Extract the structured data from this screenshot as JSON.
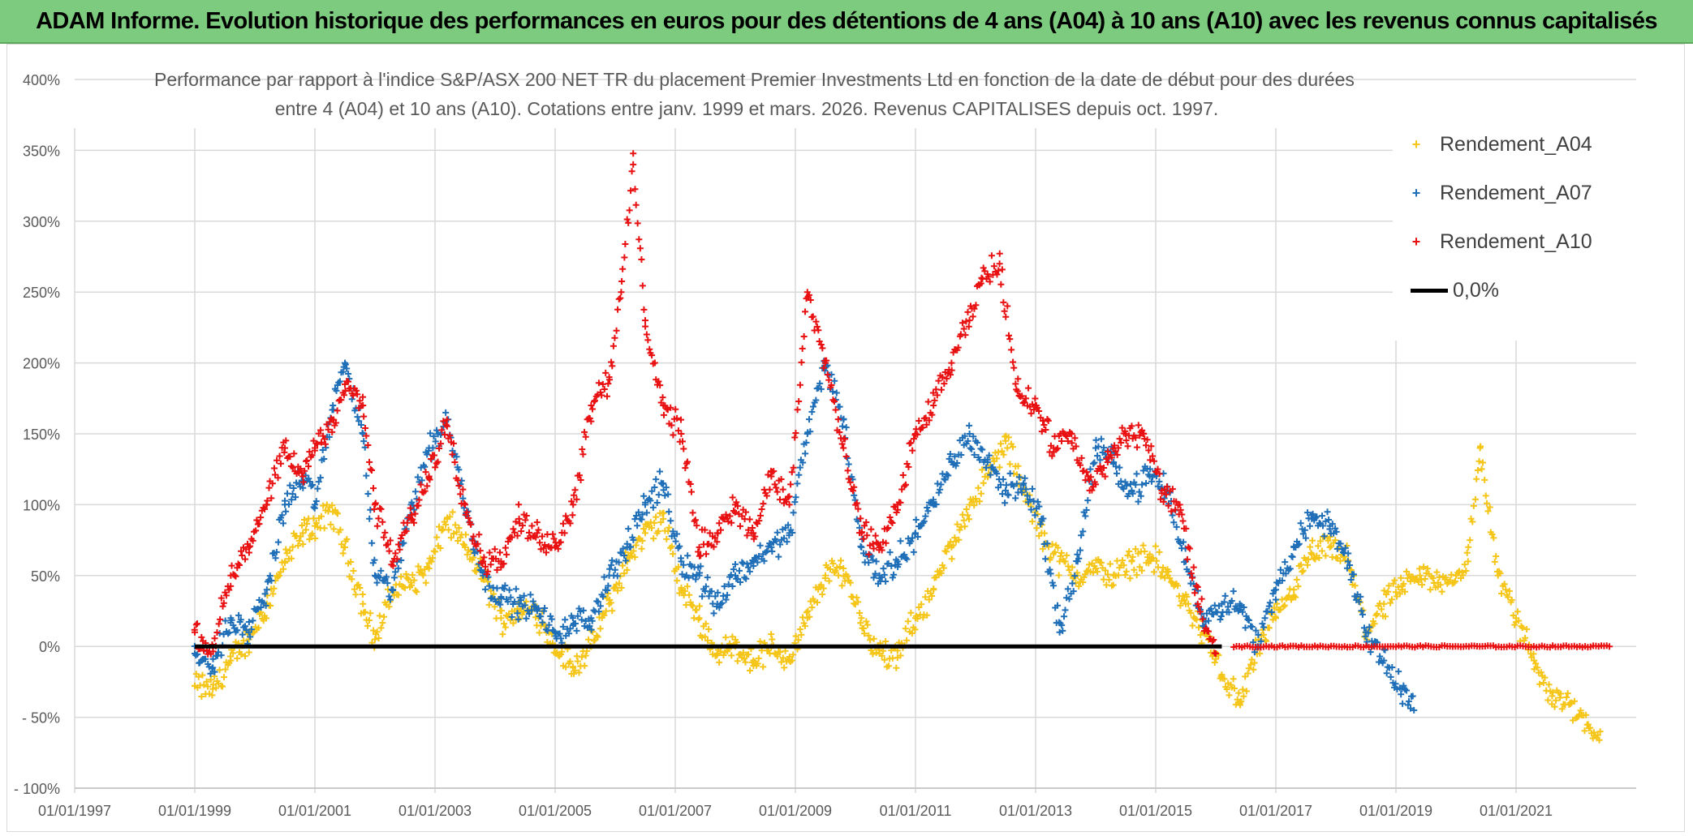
{
  "header": {
    "banner_title": "ADAM Informe. Evolution historique des performances en euros pour des détentions de 4 ans (A04) à 10 ans (A10) avec les revenus connus capitalisés"
  },
  "chart_data": {
    "type": "scatter",
    "title_line1": "Performance par rapport à l'indice S&P/ASX 200 NET TR  du placement Premier Investments Ltd  en fonction de la date de début pour des durées",
    "title_line2": "entre 4 (A04) et 10 ans (A10). Cotations entre janv. 1999 et mars. 2026. Revenus CAPITALISES depuis oct. 1997.",
    "xlabel": "",
    "ylabel": "",
    "xlim": [
      1997.0,
      2023.0
    ],
    "ylim": [
      -100,
      400
    ],
    "x_tick_labels": [
      "01/01/1997",
      "01/01/1999",
      "01/01/2001",
      "01/01/2003",
      "01/01/2005",
      "01/01/2007",
      "01/01/2009",
      "01/01/2011",
      "01/01/2013",
      "01/01/2015",
      "01/01/2017",
      "01/01/2019",
      "01/01/2021"
    ],
    "x_tick_values": [
      1997,
      1999,
      2001,
      2003,
      2005,
      2007,
      2009,
      2011,
      2013,
      2015,
      2017,
      2019,
      2021
    ],
    "y_tick_labels": [
      "- 100%",
      "- 50%",
      "0%",
      "50%",
      "100%",
      "150%",
      "200%",
      "250%",
      "300%",
      "350%",
      "400%"
    ],
    "y_tick_values": [
      -100,
      -50,
      0,
      50,
      100,
      150,
      200,
      250,
      300,
      350,
      400
    ],
    "grid": true,
    "legend_position": "top-right",
    "series": [
      {
        "name": "Rendement_A04",
        "color": "#f5c518",
        "marker": "+",
        "x": [
          1999.0,
          1999.3,
          1999.6,
          1999.9,
          2000.2,
          2000.5,
          2000.8,
          2001.0,
          2001.3,
          2001.5,
          2001.8,
          2002.0,
          2002.3,
          2002.6,
          2002.9,
          2003.2,
          2003.5,
          2003.8,
          2004.1,
          2004.4,
          2004.7,
          2005.0,
          2005.3,
          2005.6,
          2005.9,
          2006.2,
          2006.5,
          2006.8,
          2007.1,
          2007.4,
          2007.7,
          2008.0,
          2008.3,
          2008.6,
          2008.9,
          2009.2,
          2009.5,
          2009.8,
          2010.1,
          2010.4,
          2010.7,
          2011.0,
          2011.3,
          2011.6,
          2011.9,
          2012.2,
          2012.5,
          2012.8,
          2013.1,
          2013.4,
          2013.7,
          2014.0,
          2014.3,
          2014.6,
          2014.9,
          2015.2,
          2015.5,
          2015.8,
          2016.1,
          2016.4,
          2016.7,
          2017.0,
          2017.3,
          2017.6,
          2017.9,
          2018.2,
          2018.5,
          2018.8,
          2019.1,
          2019.4,
          2019.7,
          2020.0,
          2020.2,
          2020.4,
          2020.7,
          2021.0,
          2021.3,
          2021.6,
          2021.9,
          2022.2,
          2022.4
        ],
        "y": [
          -28,
          -30,
          -10,
          5,
          30,
          60,
          80,
          85,
          95,
          70,
          30,
          5,
          40,
          45,
          55,
          90,
          70,
          50,
          20,
          25,
          25,
          0,
          -15,
          0,
          30,
          60,
          80,
          90,
          40,
          20,
          -5,
          0,
          -10,
          0,
          -10,
          20,
          50,
          55,
          20,
          -5,
          -8,
          20,
          40,
          70,
          100,
          120,
          145,
          110,
          80,
          60,
          50,
          55,
          50,
          60,
          65,
          50,
          30,
          10,
          -20,
          -40,
          0,
          20,
          40,
          65,
          70,
          60,
          10,
          30,
          40,
          50,
          45,
          50,
          60,
          140,
          50,
          20,
          -10,
          -35,
          -40,
          -55,
          -60
        ]
      },
      {
        "name": "Rendement_A07",
        "color": "#1f6fb8",
        "marker": "+",
        "x": [
          1999.0,
          1999.3,
          1999.6,
          1999.9,
          2000.2,
          2000.5,
          2000.8,
          2001.0,
          2001.3,
          2001.5,
          2001.8,
          2002.0,
          2002.3,
          2002.6,
          2002.9,
          2003.2,
          2003.5,
          2003.8,
          2004.1,
          2004.4,
          2004.7,
          2005.0,
          2005.3,
          2005.6,
          2005.9,
          2006.2,
          2006.5,
          2006.8,
          2007.1,
          2007.4,
          2007.7,
          2008.0,
          2008.3,
          2008.6,
          2008.9,
          2009.2,
          2009.5,
          2009.8,
          2010.1,
          2010.4,
          2010.7,
          2011.0,
          2011.3,
          2011.6,
          2011.9,
          2012.2,
          2012.5,
          2012.8,
          2013.1,
          2013.4,
          2013.7,
          2014.0,
          2014.3,
          2014.6,
          2014.9,
          2015.2,
          2015.5,
          2015.8,
          2016.1,
          2016.4,
          2016.7,
          2017.0,
          2017.3,
          2017.6,
          2017.9,
          2018.2,
          2018.5,
          2018.8,
          2019.1,
          2019.3
        ],
        "y": [
          -5,
          -15,
          20,
          10,
          40,
          100,
          120,
          100,
          170,
          200,
          150,
          50,
          40,
          100,
          140,
          160,
          100,
          50,
          35,
          30,
          25,
          10,
          15,
          20,
          50,
          70,
          100,
          115,
          60,
          50,
          30,
          50,
          60,
          70,
          80,
          150,
          200,
          160,
          70,
          50,
          60,
          80,
          100,
          130,
          150,
          130,
          110,
          115,
          90,
          10,
          60,
          140,
          130,
          110,
          120,
          110,
          60,
          20,
          30,
          30,
          0,
          40,
          70,
          90,
          85,
          60,
          10,
          -10,
          -30,
          -45
        ]
      },
      {
        "name": "Rendement_A10",
        "color": "#e81010",
        "marker": "+",
        "x": [
          1999.0,
          1999.3,
          1999.6,
          1999.9,
          2000.2,
          2000.5,
          2000.8,
          2001.0,
          2001.3,
          2001.5,
          2001.8,
          2002.0,
          2002.3,
          2002.6,
          2002.9,
          2003.2,
          2003.5,
          2003.8,
          2004.1,
          2004.4,
          2004.7,
          2005.0,
          2005.3,
          2005.6,
          2005.9,
          2006.1,
          2006.3,
          2006.5,
          2006.8,
          2007.1,
          2007.4,
          2007.7,
          2008.0,
          2008.3,
          2008.6,
          2008.9,
          2009.2,
          2009.5,
          2009.8,
          2010.1,
          2010.4,
          2010.7,
          2011.0,
          2011.3,
          2011.6,
          2011.9,
          2012.1,
          2012.4,
          2012.7,
          2013.0,
          2013.3,
          2013.6,
          2013.9,
          2014.2,
          2014.5,
          2014.8,
          2015.1,
          2015.4,
          2015.7,
          2016.0
        ],
        "y": [
          10,
          0,
          50,
          70,
          100,
          140,
          120,
          140,
          160,
          185,
          170,
          100,
          60,
          90,
          120,
          160,
          100,
          60,
          60,
          90,
          80,
          70,
          100,
          170,
          190,
          250,
          340,
          230,
          170,
          150,
          70,
          80,
          100,
          80,
          120,
          100,
          250,
          200,
          140,
          80,
          70,
          100,
          150,
          170,
          200,
          230,
          260,
          270,
          180,
          170,
          140,
          150,
          110,
          130,
          150,
          150,
          110,
          100,
          30,
          -5
        ]
      },
      {
        "name": "0,0%",
        "color": "#000000",
        "marker": "line",
        "x": [
          1999.0,
          2016.1
        ],
        "y": [
          0,
          0
        ]
      }
    ],
    "a10_zero_tail": {
      "x_start": 2016.3,
      "x_end": 2022.6,
      "y": 0
    }
  }
}
